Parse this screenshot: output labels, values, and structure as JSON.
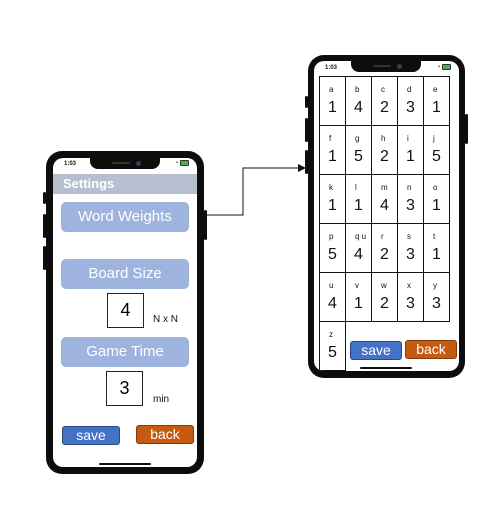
{
  "status_time": "1:03",
  "settings": {
    "title": "Settings",
    "word_weights_label": "Word Weights",
    "board_size_label": "Board Size",
    "board_size_value": "4",
    "board_size_unit": "N x N",
    "game_time_label": "Game Time",
    "game_time_value": "3",
    "game_time_unit": "min",
    "save_label": "save",
    "back_label": "back"
  },
  "weights": {
    "cells": [
      {
        "letter": "a",
        "weight": "1"
      },
      {
        "letter": "b",
        "weight": "4"
      },
      {
        "letter": "c",
        "weight": "2"
      },
      {
        "letter": "d",
        "weight": "3"
      },
      {
        "letter": "e",
        "weight": "1"
      },
      {
        "letter": "f",
        "weight": "1"
      },
      {
        "letter": "g",
        "weight": "5"
      },
      {
        "letter": "h",
        "weight": "2"
      },
      {
        "letter": "i",
        "weight": "1"
      },
      {
        "letter": "j",
        "weight": "5"
      },
      {
        "letter": "k",
        "weight": "1"
      },
      {
        "letter": "l",
        "weight": "1"
      },
      {
        "letter": "m",
        "weight": "4"
      },
      {
        "letter": "n",
        "weight": "3"
      },
      {
        "letter": "o",
        "weight": "1"
      },
      {
        "letter": "p",
        "weight": "5"
      },
      {
        "letter": "q u",
        "weight": "4"
      },
      {
        "letter": "r",
        "weight": "2"
      },
      {
        "letter": "s",
        "weight": "3"
      },
      {
        "letter": "t",
        "weight": "1"
      },
      {
        "letter": "u",
        "weight": "4"
      },
      {
        "letter": "v",
        "weight": "1"
      },
      {
        "letter": "w",
        "weight": "2"
      },
      {
        "letter": "x",
        "weight": "3"
      },
      {
        "letter": "y",
        "weight": "3"
      },
      {
        "letter": "z",
        "weight": "5"
      }
    ],
    "save_label": "save",
    "back_label": "back"
  }
}
